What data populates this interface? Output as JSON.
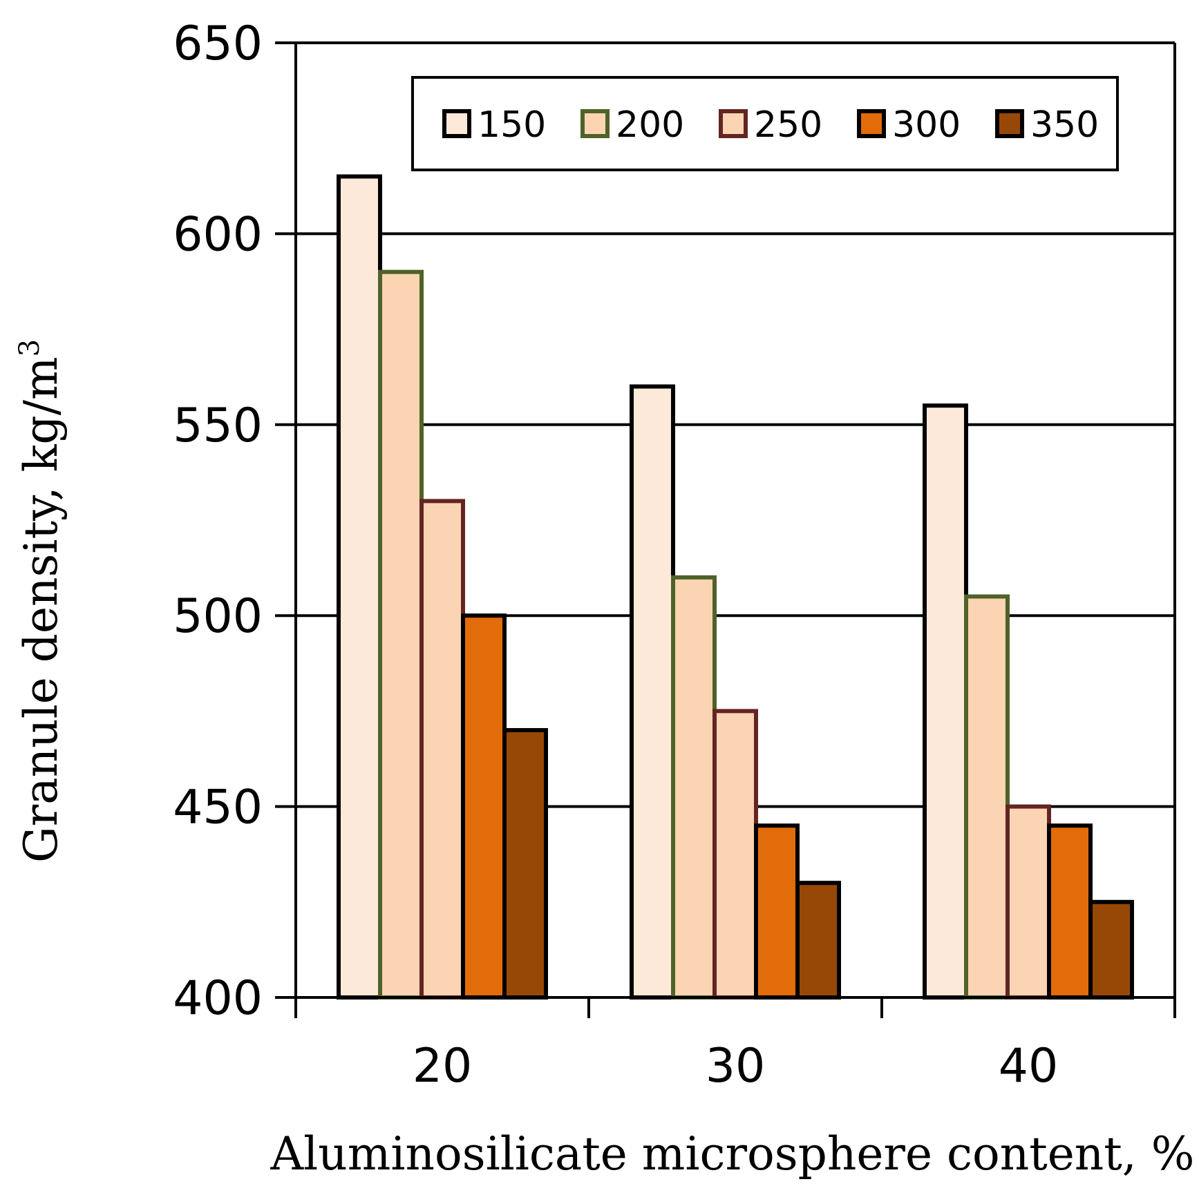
{
  "chart_data": {
    "type": "bar",
    "title": "",
    "xlabel": "Aluminosilicate microsphere content, %",
    "ylabel": "Granule density, kg/m",
    "ylabel_superscript": "3",
    "categories": [
      "20",
      "30",
      "40"
    ],
    "ylim": [
      400,
      650
    ],
    "yticks": [
      "400",
      "450",
      "500",
      "550",
      "600",
      "650"
    ],
    "grid": true,
    "legend_position": "top-center",
    "series": [
      {
        "name": "150",
        "values": [
          615,
          560,
          555
        ],
        "fill": "#fde9da",
        "stroke": "#000000"
      },
      {
        "name": "200",
        "values": [
          590,
          510,
          505
        ],
        "fill": "#fbd4b4",
        "stroke": "#4f6228"
      },
      {
        "name": "250",
        "values": [
          530,
          475,
          450
        ],
        "fill": "#fbd4b4",
        "stroke": "#632523"
      },
      {
        "name": "300",
        "values": [
          500,
          445,
          445
        ],
        "fill": "#e36c0a",
        "stroke": "#000000"
      },
      {
        "name": "350",
        "values": [
          470,
          430,
          425
        ],
        "fill": "#974806",
        "stroke": "#000000"
      }
    ]
  }
}
